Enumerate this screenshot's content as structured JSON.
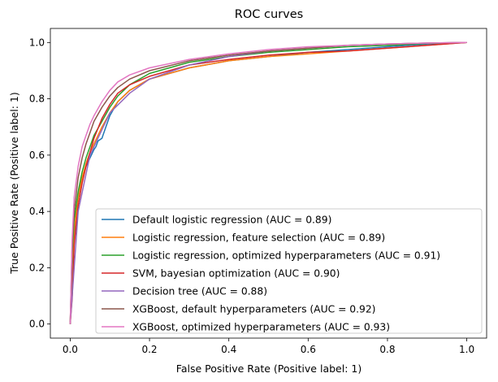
{
  "chart_data": {
    "type": "line",
    "title": "ROC curves",
    "xlabel": "False Positive Rate (Positive label: 1)",
    "ylabel": "True Positive Rate (Positive label: 1)",
    "xlim": [
      -0.05,
      1.05
    ],
    "ylim": [
      -0.05,
      1.05
    ],
    "xticks": [
      0.0,
      0.2,
      0.4,
      0.6,
      0.8,
      1.0
    ],
    "yticks": [
      0.0,
      0.2,
      0.4,
      0.6,
      0.8,
      1.0
    ],
    "xtick_labels": [
      "0.0",
      "0.2",
      "0.4",
      "0.6",
      "0.8",
      "1.0"
    ],
    "ytick_labels": [
      "0.0",
      "0.2",
      "0.4",
      "0.6",
      "0.8",
      "1.0"
    ],
    "grid": false,
    "legend_position": "lower-right",
    "series": [
      {
        "name": "Default logistic regression (AUC = 0.89)",
        "color": "#1f77b4",
        "x": [
          0,
          0.005,
          0.01,
          0.015,
          0.02,
          0.03,
          0.04,
          0.05,
          0.06,
          0.065,
          0.07,
          0.08,
          0.09,
          0.1,
          0.12,
          0.15,
          0.2,
          0.3,
          0.4,
          0.5,
          0.6,
          0.7,
          0.8,
          0.9,
          1.0
        ],
        "y": [
          0,
          0.2,
          0.3,
          0.4,
          0.45,
          0.52,
          0.56,
          0.59,
          0.62,
          0.63,
          0.65,
          0.66,
          0.7,
          0.74,
          0.79,
          0.83,
          0.87,
          0.91,
          0.935,
          0.95,
          0.965,
          0.975,
          0.985,
          0.995,
          1.0
        ]
      },
      {
        "name": "Logistic regression, feature selection (AUC = 0.89)",
        "color": "#ff7f0e",
        "x": [
          0,
          0.005,
          0.01,
          0.02,
          0.03,
          0.04,
          0.05,
          0.06,
          0.08,
          0.1,
          0.12,
          0.15,
          0.2,
          0.3,
          0.4,
          0.5,
          0.6,
          0.7,
          0.8,
          0.9,
          1.0
        ],
        "y": [
          0,
          0.22,
          0.33,
          0.45,
          0.52,
          0.57,
          0.61,
          0.64,
          0.7,
          0.75,
          0.79,
          0.83,
          0.87,
          0.91,
          0.935,
          0.95,
          0.96,
          0.97,
          0.98,
          0.99,
          1.0
        ]
      },
      {
        "name": "Logistic regression, optimized hyperparameters (AUC = 0.91)",
        "color": "#2ca02c",
        "x": [
          0,
          0.005,
          0.01,
          0.02,
          0.03,
          0.04,
          0.05,
          0.06,
          0.08,
          0.1,
          0.12,
          0.15,
          0.2,
          0.3,
          0.4,
          0.5,
          0.6,
          0.7,
          0.8,
          0.9,
          1.0
        ],
        "y": [
          0,
          0.25,
          0.37,
          0.47,
          0.54,
          0.59,
          0.63,
          0.67,
          0.72,
          0.77,
          0.81,
          0.85,
          0.89,
          0.93,
          0.95,
          0.965,
          0.975,
          0.985,
          0.99,
          0.997,
          1.0
        ]
      },
      {
        "name": "SVM, bayesian optimization (AUC = 0.90)",
        "color": "#d62728",
        "x": [
          0,
          0.005,
          0.01,
          0.02,
          0.03,
          0.04,
          0.05,
          0.06,
          0.08,
          0.1,
          0.12,
          0.15,
          0.2,
          0.3,
          0.4,
          0.5,
          0.6,
          0.7,
          0.8,
          0.9,
          1.0
        ],
        "y": [
          0,
          0.09,
          0.28,
          0.42,
          0.5,
          0.56,
          0.61,
          0.66,
          0.73,
          0.78,
          0.82,
          0.85,
          0.88,
          0.92,
          0.94,
          0.955,
          0.965,
          0.97,
          0.98,
          0.99,
          1.0
        ]
      },
      {
        "name": "Decision tree (AUC = 0.88)",
        "color": "#9467bd",
        "x": [
          0,
          0.02,
          0.05,
          0.1,
          0.15,
          0.2,
          0.3,
          0.4,
          0.5,
          0.6,
          0.7,
          0.8,
          0.9,
          1.0
        ],
        "y": [
          0,
          0.4,
          0.6,
          0.75,
          0.82,
          0.87,
          0.92,
          0.95,
          0.97,
          0.98,
          0.99,
          0.995,
          0.998,
          1.0
        ]
      },
      {
        "name": "XGBoost, default hyperparameters (AUC = 0.92)",
        "color": "#8c564b",
        "x": [
          0,
          0.005,
          0.01,
          0.02,
          0.03,
          0.04,
          0.05,
          0.06,
          0.08,
          0.1,
          0.12,
          0.15,
          0.2,
          0.3,
          0.4,
          0.5,
          0.6,
          0.7,
          0.8,
          0.9,
          1.0
        ],
        "y": [
          0,
          0.28,
          0.4,
          0.52,
          0.59,
          0.64,
          0.68,
          0.72,
          0.77,
          0.81,
          0.84,
          0.87,
          0.9,
          0.935,
          0.955,
          0.97,
          0.98,
          0.99,
          0.995,
          0.998,
          1.0
        ]
      },
      {
        "name": "XGBoost, optimized hyperparameters (AUC = 0.93)",
        "color": "#e377c2",
        "x": [
          0,
          0.005,
          0.01,
          0.02,
          0.03,
          0.04,
          0.05,
          0.06,
          0.08,
          0.1,
          0.12,
          0.15,
          0.2,
          0.3,
          0.4,
          0.5,
          0.6,
          0.7,
          0.8,
          0.9,
          1.0
        ],
        "y": [
          0,
          0.3,
          0.45,
          0.56,
          0.63,
          0.67,
          0.71,
          0.74,
          0.79,
          0.83,
          0.86,
          0.885,
          0.91,
          0.94,
          0.96,
          0.975,
          0.985,
          0.99,
          0.995,
          0.998,
          1.0
        ]
      }
    ]
  }
}
